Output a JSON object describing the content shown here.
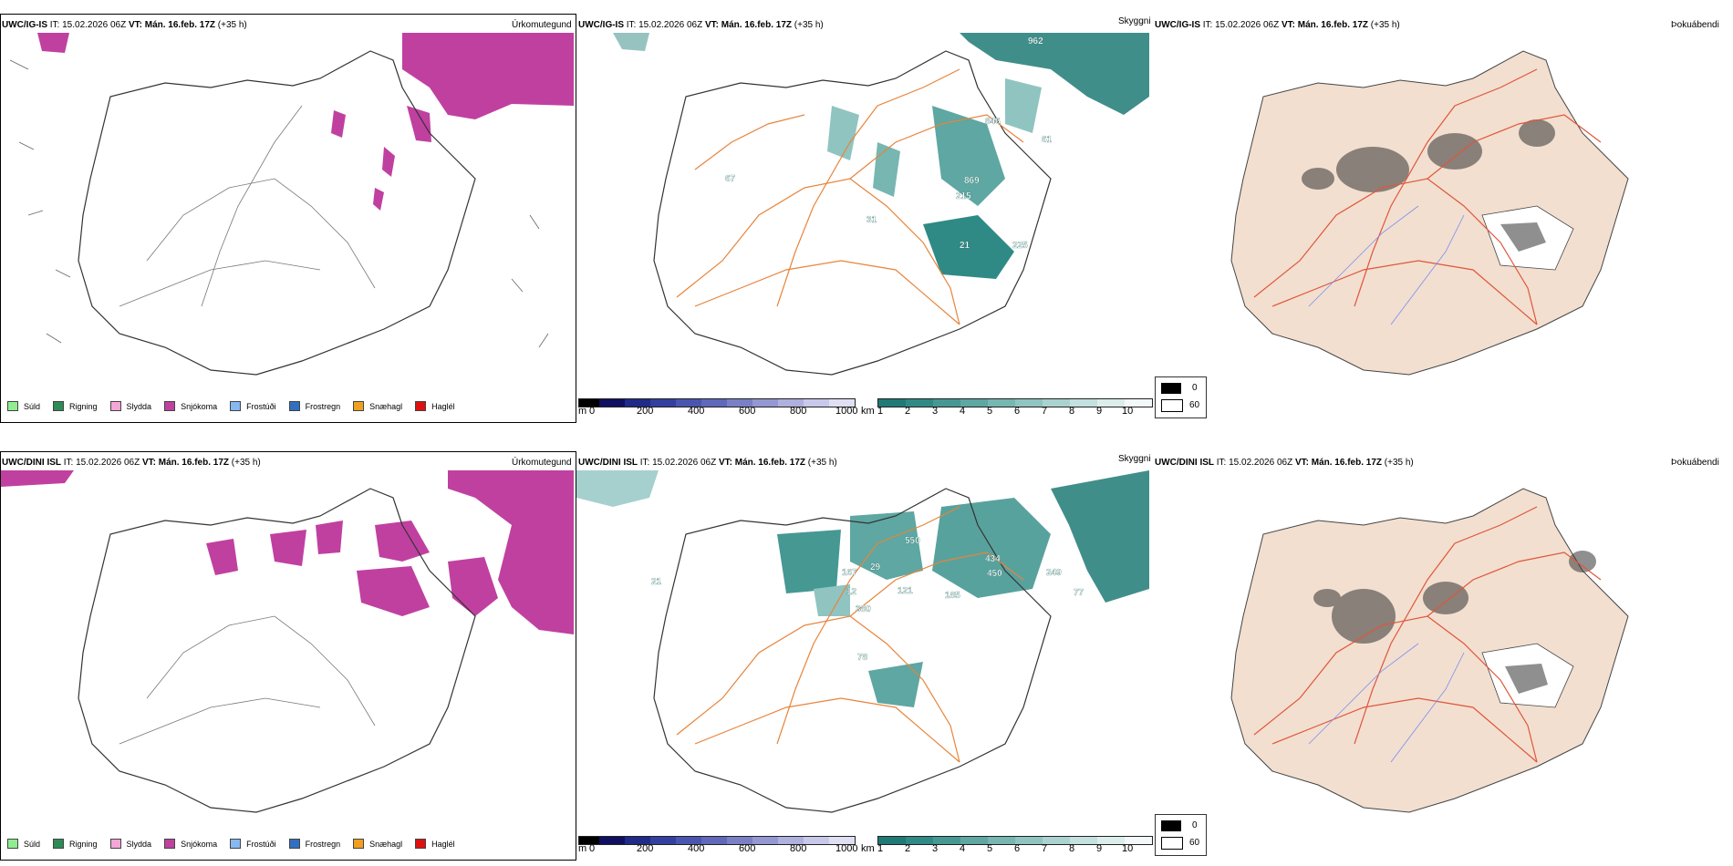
{
  "rows": [
    {
      "model": "UWC/IG-IS",
      "it_label": "IT:",
      "it_value": "15.02.2026 06Z",
      "vt_label": "VT:",
      "vt_value": "Mán. 16.feb. 17Z",
      "lead": "(+35 h)",
      "labels_skyggni": [
        "962",
        "846",
        "869",
        "215",
        "21",
        "225",
        "61",
        "67",
        "31"
      ]
    },
    {
      "model": "UWC/DINI ISL",
      "it_label": "IT:",
      "it_value": "15.02.2026 06Z",
      "vt_label": "VT:",
      "vt_value": "Mán. 16.feb. 17Z",
      "lead": "(+35 h)",
      "labels_skyggni": [
        "550",
        "434",
        "450",
        "185",
        "121",
        "167",
        "29",
        "12",
        "380",
        "77",
        "249",
        "21",
        "78"
      ]
    }
  ],
  "panel_types": {
    "precip": "Úrkomutegund",
    "visibility": "Skyggni",
    "fog": "Þokuábendi"
  },
  "precip_legend": [
    {
      "label": "Súld",
      "color": "#90ee90"
    },
    {
      "label": "Rigning",
      "color": "#2e8b57"
    },
    {
      "label": "Slydda",
      "color": "#f4a6d7"
    },
    {
      "label": "Snjókoma",
      "color": "#c040a0"
    },
    {
      "label": "Frostúði",
      "color": "#87b8f0"
    },
    {
      "label": "Frostregn",
      "color": "#3070c0"
    },
    {
      "label": "Snæhagl",
      "color": "#f0a020"
    },
    {
      "label": "Haglél",
      "color": "#e01010"
    }
  ],
  "height_scale": {
    "unit": "m",
    "ticks": [
      "0",
      "200",
      "400",
      "600",
      "800",
      "1000"
    ],
    "colors": [
      "#000000",
      "#101060",
      "#202a88",
      "#3340a0",
      "#4a55b0",
      "#6068bb",
      "#7a80c6",
      "#9498d2",
      "#aeb0de",
      "#c8c9ea",
      "#e0e0f4"
    ]
  },
  "visibility_scale": {
    "unit": "km",
    "ticks": [
      "1",
      "2",
      "3",
      "4",
      "5",
      "6",
      "7",
      "8",
      "9",
      "10"
    ],
    "colors": [
      "#1f7a76",
      "#2f8a85",
      "#469893",
      "#5ea7a2",
      "#77b6b1",
      "#90c4c0",
      "#aad3cf",
      "#c3e1de",
      "#dceeec",
      "#f2f9f8"
    ]
  },
  "fog_legend": [
    "0",
    "60"
  ]
}
